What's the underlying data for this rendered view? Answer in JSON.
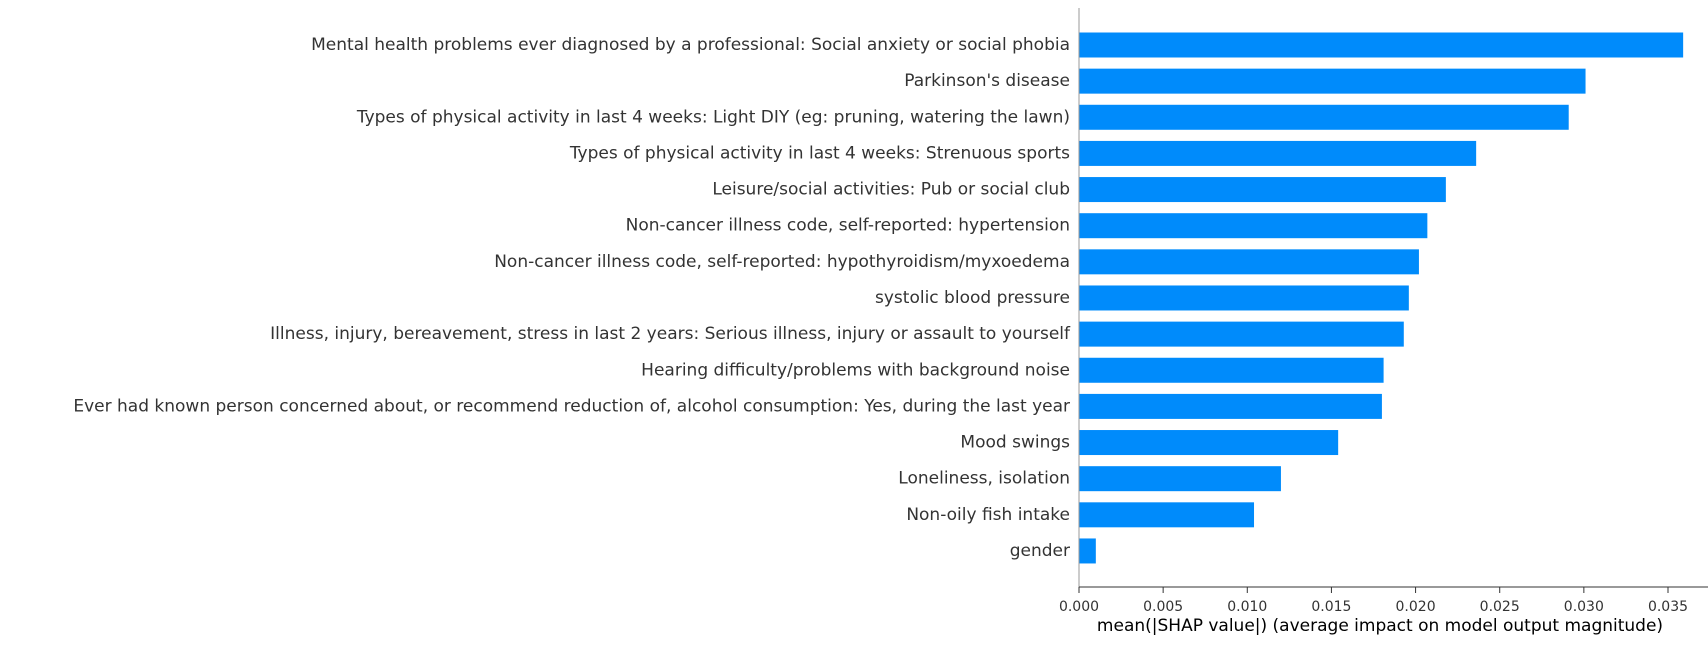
{
  "chart_data": {
    "type": "bar",
    "orientation": "horizontal",
    "title": "",
    "xlabel": "mean(|SHAP value|) (average impact on model output magnitude)",
    "ylabel": "",
    "xlim": [
      0,
      0.0378
    ],
    "xticks": [
      "0.000",
      "0.005",
      "0.010",
      "0.015",
      "0.020",
      "0.025",
      "0.030",
      "0.035"
    ],
    "bar_color": "#008bfb",
    "grid": false,
    "legend": "none",
    "categories": [
      "Mental health problems ever diagnosed by a professional: Social anxiety or social phobia",
      "Parkinson's disease",
      "Types of physical activity in last 4 weeks: Light DIY (eg: pruning, watering the lawn)",
      "Types of physical activity in last 4 weeks: Strenuous sports",
      "Leisure/social activities: Pub or social club",
      "Non-cancer illness code, self-reported: hypertension",
      "Non-cancer illness code, self-reported: hypothyroidism/myxoedema",
      "systolic blood pressure",
      "Illness, injury, bereavement, stress in last 2 years: Serious illness, injury or assault to yourself",
      "Hearing difficulty/problems with background noise",
      "Ever had known person concerned about, or recommend reduction of, alcohol consumption: Yes, during the last year",
      "Mood swings",
      "Loneliness, isolation",
      "Non-oily fish intake",
      "gender"
    ],
    "values": [
      0.0359,
      0.0301,
      0.0291,
      0.0236,
      0.0218,
      0.0207,
      0.0202,
      0.0196,
      0.0193,
      0.0181,
      0.018,
      0.0154,
      0.012,
      0.0104,
      0.001
    ]
  }
}
